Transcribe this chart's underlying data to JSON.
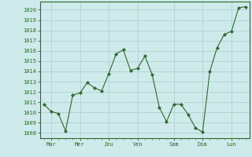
{
  "x": [
    0,
    1,
    2,
    3,
    4,
    5,
    6,
    7,
    8,
    9,
    10,
    11,
    12,
    13,
    14,
    15,
    16,
    17,
    18,
    19,
    20,
    21,
    22,
    23,
    24,
    25,
    26,
    27,
    28
  ],
  "y": [
    1010.8,
    1010.1,
    1009.9,
    1008.2,
    1011.7,
    1011.9,
    1012.9,
    1012.4,
    1012.1,
    1013.8,
    1015.7,
    1016.1,
    1014.1,
    1014.3,
    1015.5,
    1013.7,
    1010.5,
    1009.1,
    1010.8,
    1010.8,
    1009.8,
    1008.5,
    1008.1,
    1014.0,
    1016.3,
    1017.6,
    1017.9,
    1020.2,
    1020.3
  ],
  "xtick_positions": [
    1,
    5,
    9,
    13,
    18,
    22,
    26
  ],
  "xtick_labels": [
    "Mar",
    "Mer",
    "Jeu",
    "Ven",
    "Sam",
    "Dim",
    "Lun"
  ],
  "ytick_min": 1008,
  "ytick_max": 1020,
  "ylim": [
    1007.5,
    1020.8
  ],
  "xlim": [
    -0.5,
    28.5
  ],
  "line_color": "#2d6a2d",
  "marker_color": "#2d6a2d",
  "bg_color": "#ceeaea",
  "grid_color": "#a8cccc",
  "axis_color": "#2d6a2d",
  "tick_color": "#2d6a2d",
  "label_color": "#2d6a2d"
}
